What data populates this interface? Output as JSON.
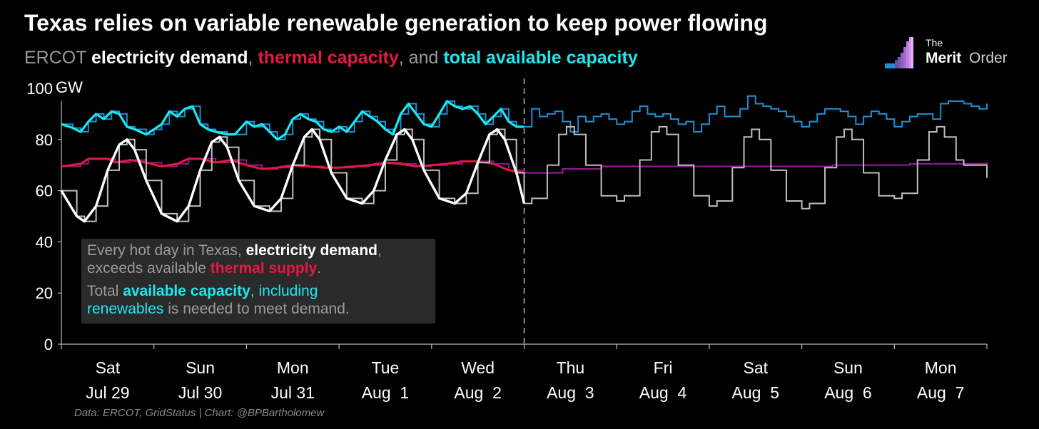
{
  "title": "Texas relies on variable renewable generation to keep power flowing",
  "subtitle": {
    "prefix": "ERCOT",
    "demand": "electricity demand",
    "sep1": ",",
    "thermal": "thermal capacity",
    "sep2": ", and",
    "available": "total available capacity"
  },
  "logo": {
    "the": "The",
    "merit": "Merit",
    "order": "Order"
  },
  "annotation": {
    "line1_a": "Every hot day in Texas,",
    "line1_b": "electricity demand",
    "line1_c": ",",
    "line2_a": "exceeds available",
    "line2_b": "thermal supply",
    "line2_c": ".",
    "line3_a": "Total",
    "line3_b": "available capacity",
    "line3_c": ", including",
    "line4_a": "renewables",
    "line4_b": " is needed to meet demand."
  },
  "source": "Data: ERCOT, GridStatus | Chart: @BPBartholomew",
  "colors": {
    "demand": "#ffffff",
    "demand_forecast": "#bdbdbd",
    "thermal": "#e8173f",
    "thermal_forecast": "#8e1a8e",
    "available": "#1de9f0",
    "available_forecast": "#1b8fd6",
    "axis": "#bbbbbb"
  },
  "chart_data": {
    "type": "line",
    "ylabel": "GW",
    "ylim": [
      0,
      100
    ],
    "yticks": [
      "0",
      "20",
      "40",
      "60",
      "80",
      "100"
    ],
    "xlim": [
      0,
      240
    ],
    "x_unit": "hours from Sat Jul 29 00:00",
    "forecast_start": 120,
    "x_tick_labels": [
      {
        "day": "Sat",
        "date": "Jul 29"
      },
      {
        "day": "Sun",
        "date": "Jul 30"
      },
      {
        "day": "Mon",
        "date": "Jul 31"
      },
      {
        "day": "Tue",
        "date": "Aug  1"
      },
      {
        "day": "Wed",
        "date": "Aug  2"
      },
      {
        "day": "Thu",
        "date": "Aug  3"
      },
      {
        "day": "Fri",
        "date": "Aug  4"
      },
      {
        "day": "Sat",
        "date": "Aug  5"
      },
      {
        "day": "Sun",
        "date": "Aug  6"
      },
      {
        "day": "Mon",
        "date": "Aug  7"
      }
    ],
    "series": [
      {
        "name": "electricity demand",
        "actual": [
          [
            0,
            60
          ],
          [
            4,
            50
          ],
          [
            6,
            48
          ],
          [
            9,
            54
          ],
          [
            12,
            68
          ],
          [
            15,
            78
          ],
          [
            17,
            80
          ],
          [
            19,
            76
          ],
          [
            22,
            64
          ],
          [
            26,
            51
          ],
          [
            30,
            48
          ],
          [
            33,
            54
          ],
          [
            36,
            68
          ],
          [
            39,
            79
          ],
          [
            41,
            81
          ],
          [
            43,
            77
          ],
          [
            46,
            64
          ],
          [
            50,
            54
          ],
          [
            54,
            52
          ],
          [
            57,
            57
          ],
          [
            60,
            70
          ],
          [
            63,
            81
          ],
          [
            65,
            84
          ],
          [
            67,
            80
          ],
          [
            70,
            67
          ],
          [
            74,
            57
          ],
          [
            78,
            55
          ],
          [
            81,
            60
          ],
          [
            84,
            72
          ],
          [
            87,
            82
          ],
          [
            89,
            84
          ],
          [
            91,
            80
          ],
          [
            94,
            68
          ],
          [
            98,
            57
          ],
          [
            102,
            55
          ],
          [
            105,
            59
          ],
          [
            108,
            71
          ],
          [
            111,
            82
          ],
          [
            113,
            84
          ],
          [
            115,
            80
          ],
          [
            118,
            67
          ],
          [
            120,
            55
          ]
        ],
        "forecast": [
          [
            120,
            55
          ],
          [
            122,
            57
          ],
          [
            126,
            70
          ],
          [
            129,
            82
          ],
          [
            131,
            85
          ],
          [
            133,
            82
          ],
          [
            136,
            70
          ],
          [
            140,
            58
          ],
          [
            144,
            56
          ],
          [
            146,
            58
          ],
          [
            150,
            72
          ],
          [
            153,
            83
          ],
          [
            155,
            85
          ],
          [
            157,
            82
          ],
          [
            160,
            70
          ],
          [
            164,
            58
          ],
          [
            168,
            54
          ],
          [
            170,
            56
          ],
          [
            174,
            69
          ],
          [
            177,
            81
          ],
          [
            179,
            84
          ],
          [
            181,
            80
          ],
          [
            184,
            68
          ],
          [
            188,
            56
          ],
          [
            192,
            53
          ],
          [
            194,
            55
          ],
          [
            198,
            69
          ],
          [
            201,
            81
          ],
          [
            203,
            84
          ],
          [
            205,
            80
          ],
          [
            208,
            67
          ],
          [
            212,
            58
          ],
          [
            216,
            57
          ],
          [
            218,
            59
          ],
          [
            222,
            72
          ],
          [
            225,
            83
          ],
          [
            227,
            85
          ],
          [
            229,
            81
          ],
          [
            232,
            72
          ],
          [
            234,
            70
          ],
          [
            240,
            65
          ]
        ]
      },
      {
        "name": "thermal capacity",
        "actual": [
          [
            0,
            69.5
          ],
          [
            5,
            70.5
          ],
          [
            7,
            72.5
          ],
          [
            12,
            72.5
          ],
          [
            14,
            71
          ],
          [
            18,
            72
          ],
          [
            22,
            71
          ],
          [
            26,
            69.5
          ],
          [
            30,
            70.5
          ],
          [
            33,
            72.5
          ],
          [
            36,
            72.5
          ],
          [
            40,
            71
          ],
          [
            44,
            72
          ],
          [
            48,
            70
          ],
          [
            52,
            68.5
          ],
          [
            56,
            69
          ],
          [
            60,
            70
          ],
          [
            64,
            69.5
          ],
          [
            68,
            69
          ],
          [
            72,
            69
          ],
          [
            76,
            69.5
          ],
          [
            80,
            70
          ],
          [
            84,
            71
          ],
          [
            88,
            70.5
          ],
          [
            92,
            69.5
          ],
          [
            96,
            70
          ],
          [
            100,
            70.5
          ],
          [
            104,
            71.5
          ],
          [
            108,
            71.5
          ],
          [
            112,
            70.5
          ],
          [
            116,
            68
          ],
          [
            120,
            67
          ]
        ],
        "forecast": [
          [
            120,
            67
          ],
          [
            130,
            68.5
          ],
          [
            140,
            69.5
          ],
          [
            160,
            69.5
          ],
          [
            180,
            69.5
          ],
          [
            200,
            70
          ],
          [
            220,
            70.5
          ],
          [
            240,
            71
          ]
        ]
      },
      {
        "name": "total available capacity",
        "actual": [
          [
            0,
            86
          ],
          [
            3,
            84.5
          ],
          [
            5,
            83
          ],
          [
            7,
            87
          ],
          [
            9,
            90
          ],
          [
            11,
            88
          ],
          [
            13,
            91
          ],
          [
            15,
            90
          ],
          [
            17,
            85
          ],
          [
            19,
            84
          ],
          [
            22,
            82
          ],
          [
            24,
            84
          ],
          [
            26,
            86
          ],
          [
            28,
            91
          ],
          [
            30,
            89
          ],
          [
            32,
            92
          ],
          [
            34,
            93
          ],
          [
            36,
            86
          ],
          [
            38,
            84
          ],
          [
            40,
            83
          ],
          [
            43,
            82
          ],
          [
            45,
            82
          ],
          [
            48,
            87
          ],
          [
            50,
            85
          ],
          [
            52,
            86
          ],
          [
            54,
            83
          ],
          [
            56,
            80
          ],
          [
            58,
            82
          ],
          [
            60,
            88
          ],
          [
            62,
            90
          ],
          [
            64,
            88
          ],
          [
            66,
            87
          ],
          [
            68,
            84
          ],
          [
            70,
            83
          ],
          [
            72,
            85
          ],
          [
            74,
            83
          ],
          [
            76,
            87
          ],
          [
            78,
            91
          ],
          [
            80,
            89
          ],
          [
            82,
            87
          ],
          [
            84,
            84
          ],
          [
            86,
            82
          ],
          [
            88,
            90
          ],
          [
            90,
            94
          ],
          [
            92,
            90
          ],
          [
            94,
            86
          ],
          [
            96,
            85
          ],
          [
            98,
            90
          ],
          [
            100,
            95
          ],
          [
            102,
            93
          ],
          [
            104,
            92
          ],
          [
            106,
            93
          ],
          [
            108,
            90
          ],
          [
            110,
            86
          ],
          [
            112,
            89
          ],
          [
            114,
            92
          ],
          [
            116,
            87
          ],
          [
            118,
            85
          ],
          [
            120,
            85
          ]
        ],
        "forecast": [
          [
            120,
            85
          ],
          [
            122,
            92
          ],
          [
            124,
            89
          ],
          [
            126,
            90
          ],
          [
            128,
            91
          ],
          [
            130,
            87
          ],
          [
            132,
            83
          ],
          [
            134,
            89
          ],
          [
            136,
            87
          ],
          [
            138,
            89
          ],
          [
            140,
            90
          ],
          [
            142,
            88
          ],
          [
            144,
            86
          ],
          [
            146,
            87
          ],
          [
            148,
            91
          ],
          [
            150,
            93
          ],
          [
            152,
            90
          ],
          [
            154,
            89
          ],
          [
            156,
            90
          ],
          [
            158,
            88
          ],
          [
            160,
            86
          ],
          [
            162,
            87
          ],
          [
            164,
            83
          ],
          [
            166,
            86
          ],
          [
            168,
            90
          ],
          [
            170,
            93
          ],
          [
            172,
            89
          ],
          [
            174,
            89
          ],
          [
            176,
            92
          ],
          [
            178,
            97
          ],
          [
            180,
            94
          ],
          [
            182,
            93
          ],
          [
            184,
            92
          ],
          [
            186,
            91
          ],
          [
            188,
            89
          ],
          [
            190,
            87
          ],
          [
            192,
            85
          ],
          [
            194,
            87
          ],
          [
            196,
            90
          ],
          [
            198,
            92
          ],
          [
            200,
            92
          ],
          [
            202,
            91
          ],
          [
            204,
            89
          ],
          [
            206,
            86
          ],
          [
            208,
            89
          ],
          [
            210,
            91
          ],
          [
            212,
            90
          ],
          [
            214,
            88
          ],
          [
            216,
            85
          ],
          [
            218,
            87
          ],
          [
            220,
            89
          ],
          [
            222,
            90
          ],
          [
            224,
            90
          ],
          [
            226,
            88
          ],
          [
            228,
            94
          ],
          [
            230,
            95
          ],
          [
            232,
            95
          ],
          [
            234,
            94
          ],
          [
            236,
            93
          ],
          [
            238,
            92
          ],
          [
            240,
            94
          ]
        ]
      }
    ]
  }
}
